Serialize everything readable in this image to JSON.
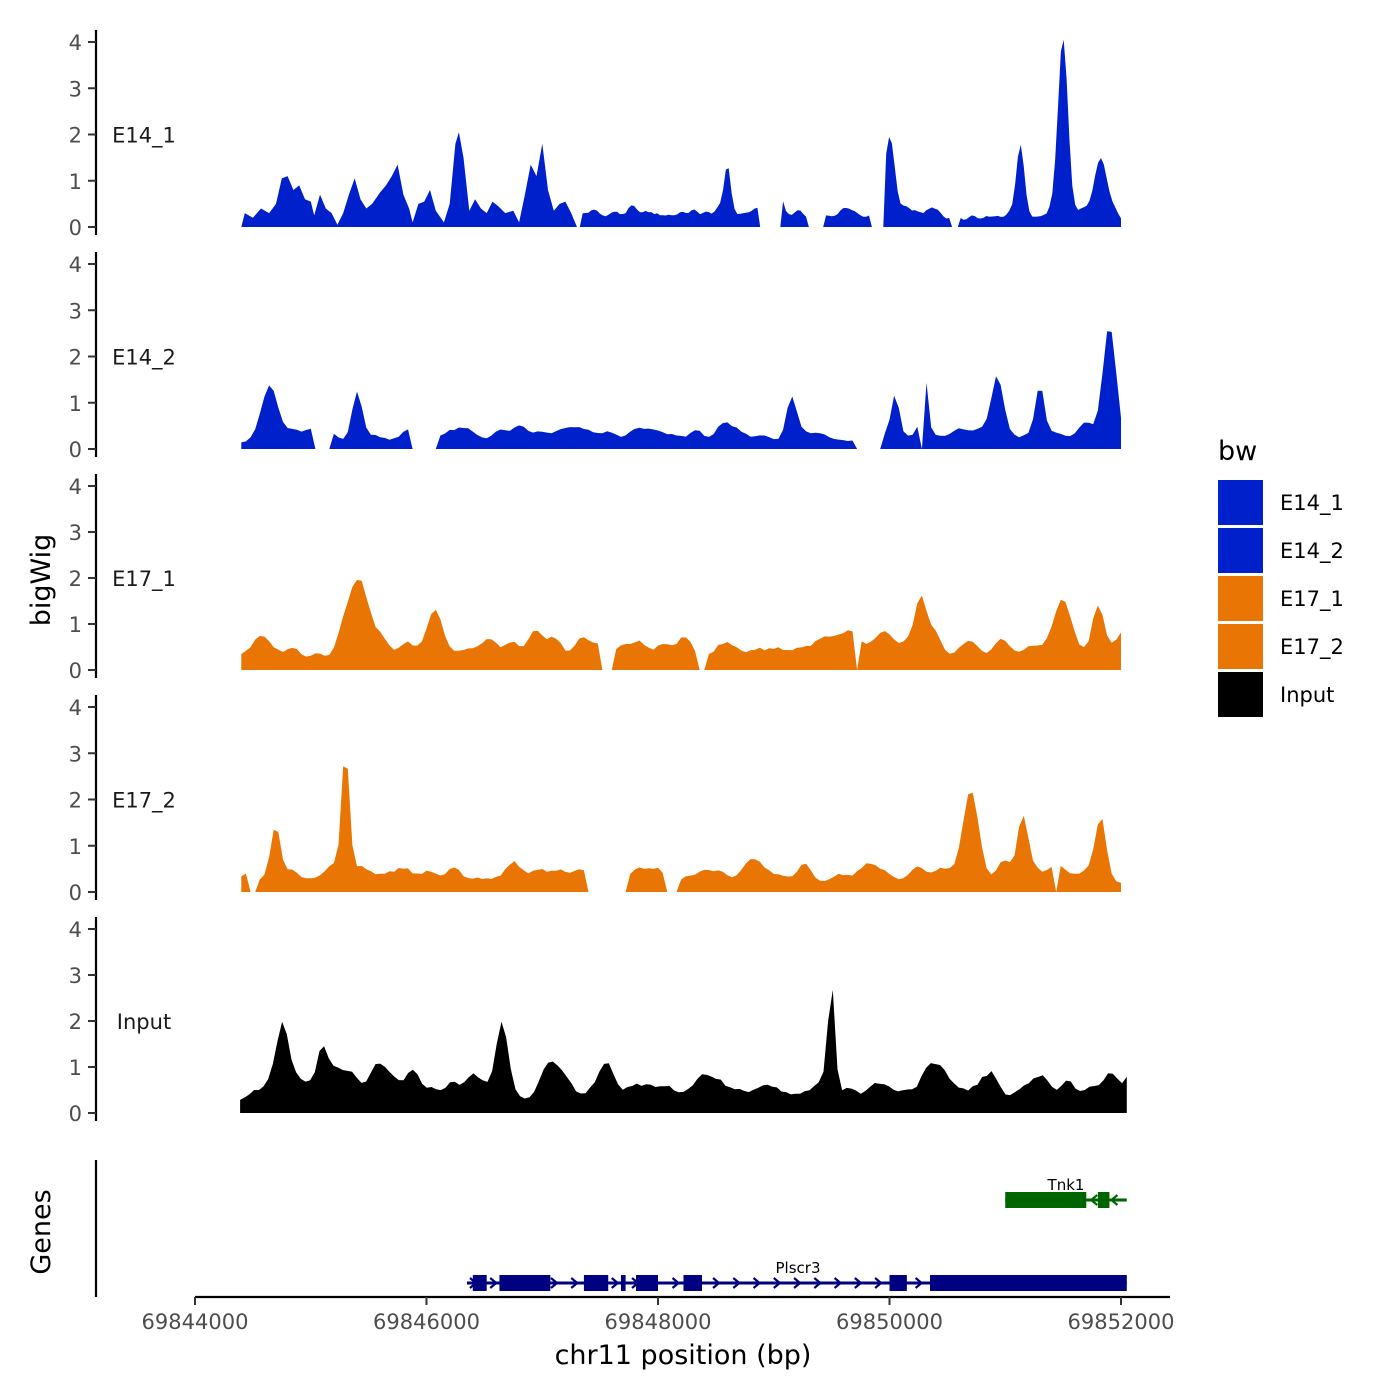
{
  "chart_data": {
    "type": "area",
    "title": "",
    "ylabel": "bigWig",
    "ylim": [
      0,
      4
    ],
    "yticks": [
      0,
      1,
      2,
      3,
      4
    ],
    "xlabel": "chr11 position (bp)",
    "xlim": [
      69844000,
      69852000
    ],
    "xticks": [
      69844000,
      69846000,
      69848000,
      69850000,
      69852000
    ],
    "colors": {
      "E14": "#0020CC",
      "E17": "#E87504",
      "Input": "#000000",
      "gene_plus": "#000080",
      "gene_minus": "#006400"
    },
    "tracks": [
      {
        "name": "E14_1",
        "color": "#0020CC",
        "x_start": 69844400,
        "x_end": 69852000,
        "points": [
          [
            69844400,
            0
          ],
          [
            69844430,
            0.3
          ],
          [
            69844500,
            0.2
          ],
          [
            69844570,
            0.4
          ],
          [
            69844640,
            0.3
          ],
          [
            69844700,
            0.5
          ],
          [
            69844750,
            1.05
          ],
          [
            69844800,
            1.1
          ],
          [
            69844850,
            0.8
          ],
          [
            69844900,
            0.9
          ],
          [
            69844950,
            0.6
          ],
          [
            69845000,
            0.55
          ],
          [
            69845030,
            0.25
          ],
          [
            69845080,
            0.7
          ],
          [
            69845130,
            0.4
          ],
          [
            69845180,
            0.3
          ],
          [
            69845230,
            0.05
          ],
          [
            69845280,
            0.3
          ],
          [
            69845330,
            0.7
          ],
          [
            69845380,
            1.05
          ],
          [
            69845430,
            0.6
          ],
          [
            69845480,
            0.4
          ],
          [
            69845530,
            0.5
          ],
          [
            69845600,
            0.75
          ],
          [
            69845650,
            0.9
          ],
          [
            69845700,
            1.1
          ],
          [
            69845750,
            1.35
          ],
          [
            69845800,
            0.7
          ],
          [
            69845850,
            0.4
          ],
          [
            69845880,
            0.1
          ],
          [
            69845930,
            0.5
          ],
          [
            69845980,
            0.55
          ],
          [
            69846030,
            0.8
          ],
          [
            69846080,
            0.35
          ],
          [
            69846150,
            0.1
          ],
          [
            69846200,
            0.5
          ],
          [
            69846250,
            1.8
          ],
          [
            69846280,
            2.05
          ],
          [
            69846320,
            1.5
          ],
          [
            69846370,
            0.35
          ],
          [
            69846420,
            0.6
          ],
          [
            69846470,
            0.4
          ],
          [
            69846520,
            0.3
          ],
          [
            69846570,
            0.55
          ],
          [
            69846620,
            0.45
          ],
          [
            69846680,
            0.3
          ],
          [
            69846750,
            0.35
          ],
          [
            69846800,
            0.1
          ],
          [
            69846850,
            0.7
          ],
          [
            69846900,
            1.35
          ],
          [
            69846950,
            1.1
          ],
          [
            69847000,
            1.8
          ],
          [
            69847050,
            0.8
          ],
          [
            69847100,
            0.35
          ],
          [
            69847150,
            0.5
          ],
          [
            69847200,
            0.55
          ],
          [
            69847250,
            0.3
          ],
          [
            69847300,
            0
          ]
        ]
      },
      {
        "name": "E14_2",
        "color": "#0020CC",
        "x_start": 69844400,
        "x_end": 69852000,
        "points": []
      },
      {
        "name": "E17_1",
        "color": "#E87504",
        "x_start": 69844400,
        "x_end": 69852000,
        "points": []
      },
      {
        "name": "E17_2",
        "color": "#E87504",
        "x_start": 69844400,
        "x_end": 69852000,
        "points": []
      },
      {
        "name": "Input",
        "color": "#000000",
        "x_start": 69844400,
        "x_end": 69852050,
        "points": []
      }
    ],
    "genes": [
      {
        "name": "Tnk1",
        "strand": "-",
        "color": "#006400",
        "start": 69851000,
        "end": 69852050,
        "exons": [
          [
            69851000,
            69851700
          ],
          [
            69851800,
            69851900
          ]
        ]
      },
      {
        "name": "Plscr3",
        "strand": "+",
        "color": "#000080",
        "start": 69846350,
        "end": 69852050,
        "exons": [
          [
            69846400,
            69846520
          ],
          [
            69846630,
            69847070
          ],
          [
            69847360,
            69847570
          ],
          [
            69847680,
            69847720
          ],
          [
            69847810,
            69848000
          ],
          [
            69848220,
            69848380
          ],
          [
            69850000,
            69850150
          ],
          [
            69850350,
            69852050
          ]
        ]
      }
    ],
    "legend": {
      "title": "bw",
      "position": "right",
      "entries": [
        {
          "label": "E14_1",
          "color": "#0020CC"
        },
        {
          "label": "E14_2",
          "color": "#0020CC"
        },
        {
          "label": "E17_1",
          "color": "#E87504"
        },
        {
          "label": "E17_2",
          "color": "#E87504"
        },
        {
          "label": "Input",
          "color": "#000000"
        }
      ]
    },
    "genes_label": "Genes"
  },
  "tick_labels": {
    "y": [
      "0",
      "1",
      "2",
      "3",
      "4"
    ],
    "x": [
      "69844000",
      "69846000",
      "69848000",
      "69850000",
      "69852000"
    ]
  }
}
